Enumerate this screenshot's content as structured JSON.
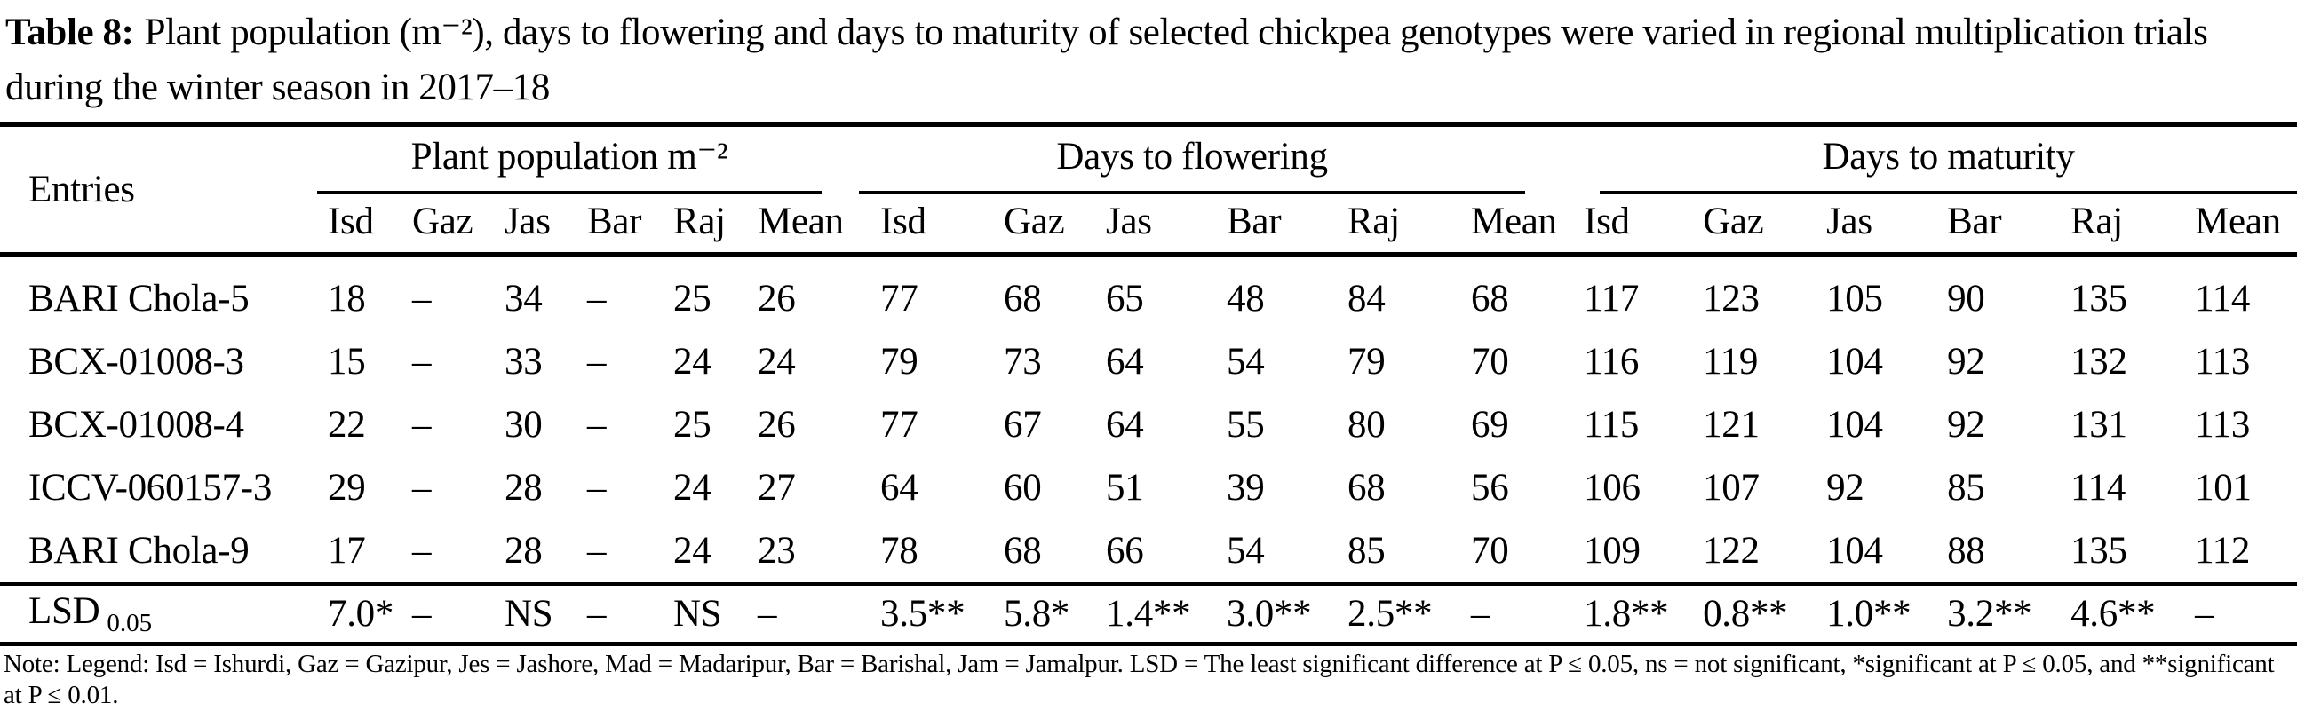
{
  "caption": {
    "label": "Table 8:",
    "text": "Plant population (m⁻²), days to flowering and days to maturity of selected chickpea genotypes were varied in regional multiplication trials during the winter season in 2017–18"
  },
  "table": {
    "entries_header": "Entries",
    "groups": [
      {
        "label": "Plant population m⁻²",
        "cols": [
          "Isd",
          "Gaz",
          "Jas",
          "Bar",
          "Raj",
          "Mean"
        ]
      },
      {
        "label": "Days to flowering",
        "cols": [
          "Isd",
          "Gaz",
          "Jas",
          "Bar",
          "Raj",
          "Mean"
        ]
      },
      {
        "label": "Days to maturity",
        "cols": [
          "Isd",
          "Gaz",
          "Jas",
          "Bar",
          "Raj",
          "Mean"
        ]
      }
    ],
    "rows": [
      {
        "entry": "BARI Chola-5",
        "values": [
          "18",
          "–",
          "34",
          "–",
          "25",
          "26",
          "77",
          "68",
          "65",
          "48",
          "84",
          "68",
          "117",
          "123",
          "105",
          "90",
          "135",
          "114"
        ]
      },
      {
        "entry": "BCX-01008-3",
        "values": [
          "15",
          "–",
          "33",
          "–",
          "24",
          "24",
          "79",
          "73",
          "64",
          "54",
          "79",
          "70",
          "116",
          "119",
          "104",
          "92",
          "132",
          "113"
        ]
      },
      {
        "entry": "BCX-01008-4",
        "values": [
          "22",
          "–",
          "30",
          "–",
          "25",
          "26",
          "77",
          "67",
          "64",
          "55",
          "80",
          "69",
          "115",
          "121",
          "104",
          "92",
          "131",
          "113"
        ]
      },
      {
        "entry": "ICCV-060157-3",
        "values": [
          "29",
          "–",
          "28",
          "–",
          "24",
          "27",
          "64",
          "60",
          "51",
          "39",
          "68",
          "56",
          "106",
          "107",
          "92",
          "85",
          "114",
          "101"
        ]
      },
      {
        "entry": "BARI Chola-9",
        "values": [
          "17",
          "–",
          "28",
          "–",
          "24",
          "23",
          "78",
          "68",
          "66",
          "54",
          "85",
          "70",
          "109",
          "122",
          "104",
          "88",
          "135",
          "112"
        ]
      }
    ],
    "lsd_row": {
      "label": "LSD",
      "sub": "0.05",
      "values": [
        "7.0*",
        "–",
        "NS",
        "–",
        "NS",
        "–",
        "3.5**",
        "5.8*",
        "1.4**",
        "3.0**",
        "2.5**",
        "–",
        "1.8**",
        "0.8**",
        "1.0**",
        "3.2**",
        "4.6**",
        "–"
      ]
    }
  },
  "note": {
    "text": "Note: Legend: Isd = Ishurdi, Gaz = Gazipur, Jes = Jashore, Mad = Madaripur, Bar = Barishal, Jam = Jamalpur. LSD = The least significant difference at P ≤ 0.05, ns = not significant, *significant at P ≤ 0.05, and **significant at P ≤ 0.01."
  }
}
